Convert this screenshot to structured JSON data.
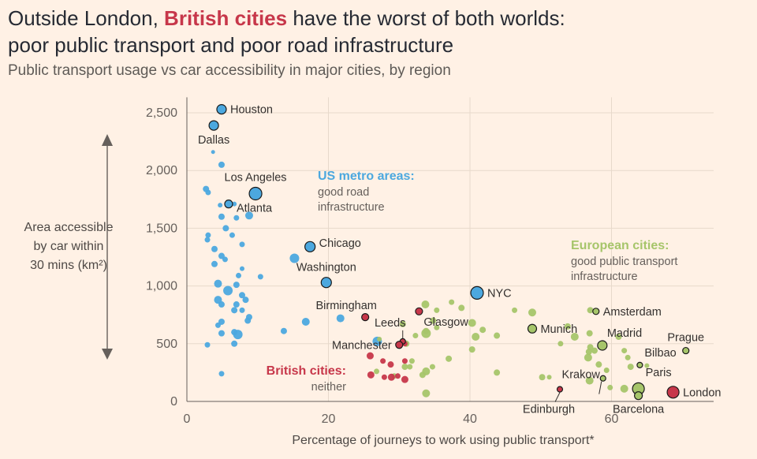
{
  "title": {
    "part1": "Outside London,",
    "highlight": "British cities",
    "part2": "have the worst of both worlds:",
    "line2": "poor public transport and poor road infrastructure"
  },
  "subtitle": "Public transport usage vs car accessibility in major cities, by region",
  "colors": {
    "us": "#4CA8DF",
    "eu": "#A6C56A",
    "uk": "#C7374A",
    "highlight_title": "#C7374A"
  },
  "chart_data": {
    "type": "scatter",
    "xlabel": "Percentage of journeys to work using public transport*",
    "ylabel": [
      "Area accessible",
      "by car within",
      "30 mins (km²)"
    ],
    "xlim": [
      0,
      73
    ],
    "ylim": [
      0,
      2600
    ],
    "xticks": [
      "0",
      "20",
      "40",
      "60"
    ],
    "xtick_values": [
      0,
      20,
      40,
      60
    ],
    "yticks": [
      "0",
      "500",
      "1,000",
      "1,500",
      "2,000",
      "2,500"
    ],
    "ytick_values": [
      0,
      500,
      1000,
      1500,
      2000,
      2500
    ],
    "groups": [
      {
        "name": "US metro areas:",
        "desc": [
          "good road",
          "infrastructure"
        ],
        "color": "#4CA8DF"
      },
      {
        "name": "European cities:",
        "desc": [
          "good public transport",
          "infrastructure"
        ],
        "color": "#A6C56A"
      },
      {
        "name": "British cities:",
        "desc": [
          "neither"
        ],
        "color": "#C7374A"
      }
    ],
    "labeled": [
      {
        "name": "Houston",
        "x": 4.9,
        "y": 2530,
        "r": 6,
        "g": "us",
        "anchor": "right",
        "dy": 0
      },
      {
        "name": "Dallas",
        "x": 3.8,
        "y": 2390,
        "r": 6,
        "g": "us",
        "anchor": "below",
        "dy": 0
      },
      {
        "name": "Los Angeles",
        "x": 9.7,
        "y": 1800,
        "r": 8,
        "g": "us",
        "anchor": "above",
        "dy": 0
      },
      {
        "name": "Atlanta",
        "x": 5.9,
        "y": 1710,
        "r": 5,
        "g": "us",
        "anchor": "right",
        "dy": 5
      },
      {
        "name": "Chicago",
        "x": 17.4,
        "y": 1340,
        "r": 6.5,
        "g": "us",
        "anchor": "right",
        "dy": -5
      },
      {
        "name": "Washington",
        "x": 19.7,
        "y": 1030,
        "r": 6.5,
        "g": "us",
        "anchor": "above",
        "dy": 0
      },
      {
        "name": "NYC",
        "x": 41.0,
        "y": 940,
        "r": 8,
        "g": "us",
        "anchor": "right",
        "dy": 0
      },
      {
        "name": "Birmingham",
        "x": 25.2,
        "y": 730,
        "r": 4.5,
        "g": "uk",
        "anchor": "left-above",
        "dy": 0
      },
      {
        "name": "Glasgow",
        "x": 32.8,
        "y": 780,
        "r": 4.5,
        "g": "uk",
        "anchor": "right-below",
        "dy": 0
      },
      {
        "name": "Leeds",
        "x": 30.5,
        "y": 520,
        "r": 3.5,
        "g": "uk",
        "anchor": "leeds",
        "dy": 0
      },
      {
        "name": "Manchester",
        "x": 30.0,
        "y": 490,
        "r": 4.5,
        "g": "uk",
        "anchor": "left",
        "dy": 0
      },
      {
        "name": "Amsterdam",
        "x": 57.8,
        "y": 780,
        "r": 4,
        "g": "eu",
        "anchor": "right",
        "dy": 0
      },
      {
        "name": "Munich",
        "x": 48.8,
        "y": 630,
        "r": 5.5,
        "g": "eu",
        "anchor": "right",
        "dy": 0
      },
      {
        "name": "Madrid",
        "x": 58.7,
        "y": 485,
        "r": 6,
        "g": "eu",
        "anchor": "above-right",
        "dy": 0
      },
      {
        "name": "Prague",
        "x": 70.5,
        "y": 440,
        "r": 4,
        "g": "eu",
        "anchor": "above",
        "dy": 0
      },
      {
        "name": "Bilbao",
        "x": 64.0,
        "y": 315,
        "r": 3.5,
        "g": "eu",
        "anchor": "above-right",
        "dy": 0
      },
      {
        "name": "Krakow",
        "x": 58.8,
        "y": 200,
        "r": 3.5,
        "g": "eu",
        "anchor": "krakow",
        "dy": 0
      },
      {
        "name": "Paris",
        "x": 63.8,
        "y": 110,
        "r": 7.5,
        "g": "eu",
        "anchor": "right-above",
        "dy": 0
      },
      {
        "name": "Barcelona",
        "x": 63.8,
        "y": 50,
        "r": 5,
        "g": "eu",
        "anchor": "below",
        "dy": 0
      },
      {
        "name": "Edinburgh",
        "x": 52.7,
        "y": 105,
        "r": 3.5,
        "g": "uk",
        "anchor": "edinburgh",
        "dy": 0
      },
      {
        "name": "London",
        "x": 68.7,
        "y": 80,
        "r": 7.5,
        "g": "uk",
        "anchor": "right",
        "dy": 0
      }
    ],
    "unlabeled": {
      "us": [
        [
          3.7,
          2160,
          2.5
        ],
        [
          4.9,
          2050,
          4
        ],
        [
          2.7,
          1840,
          4
        ],
        [
          3.0,
          1810,
          3.5
        ],
        [
          4.7,
          1700,
          3
        ],
        [
          6.7,
          1710,
          3
        ],
        [
          4.9,
          1600,
          4
        ],
        [
          7.0,
          1590,
          3.5
        ],
        [
          8.8,
          1610,
          5
        ],
        [
          5.5,
          1500,
          4
        ],
        [
          6.4,
          1440,
          3.5
        ],
        [
          3.0,
          1440,
          3.5
        ],
        [
          2.9,
          1400,
          3.5
        ],
        [
          7.8,
          1360,
          3.5
        ],
        [
          3.9,
          1320,
          4
        ],
        [
          4.9,
          1260,
          4
        ],
        [
          5.4,
          1230,
          3.5
        ],
        [
          3.9,
          1190,
          4
        ],
        [
          7.8,
          1150,
          3
        ],
        [
          15.2,
          1240,
          6
        ],
        [
          7.3,
          1090,
          3.5
        ],
        [
          10.4,
          1080,
          3.5
        ],
        [
          4.4,
          1020,
          5
        ],
        [
          7.0,
          1010,
          4
        ],
        [
          5.8,
          960,
          6
        ],
        [
          7.8,
          920,
          4
        ],
        [
          7.0,
          840,
          4
        ],
        [
          4.4,
          880,
          5
        ],
        [
          8.3,
          880,
          4
        ],
        [
          4.9,
          840,
          4
        ],
        [
          6.7,
          790,
          4
        ],
        [
          7.8,
          790,
          3.5
        ],
        [
          8.8,
          730,
          4
        ],
        [
          8.6,
          700,
          4
        ],
        [
          4.9,
          690,
          4
        ],
        [
          4.4,
          660,
          3.5
        ],
        [
          16.8,
          690,
          5
        ],
        [
          21.7,
          720,
          5
        ],
        [
          13.7,
          610,
          4
        ],
        [
          6.7,
          600,
          4
        ],
        [
          7.2,
          580,
          6
        ],
        [
          4.9,
          590,
          4
        ],
        [
          2.9,
          490,
          3.5
        ],
        [
          6.7,
          500,
          4
        ],
        [
          26.9,
          520,
          6
        ],
        [
          4.9,
          240,
          3.5
        ]
      ],
      "eu": [
        [
          33.7,
          840,
          5
        ],
        [
          37.4,
          860,
          3.5
        ],
        [
          38.8,
          810,
          4
        ],
        [
          35.3,
          790,
          3.5
        ],
        [
          34.8,
          700,
          4
        ],
        [
          35.3,
          640,
          3.5
        ],
        [
          30.5,
          670,
          4
        ],
        [
          32.3,
          570,
          3.5
        ],
        [
          31.0,
          500,
          4
        ],
        [
          33.8,
          610,
          4
        ],
        [
          33.8,
          590,
          6
        ],
        [
          40.3,
          680,
          5
        ],
        [
          41.8,
          620,
          4
        ],
        [
          40.8,
          560,
          5
        ],
        [
          43.8,
          570,
          4
        ],
        [
          46.3,
          790,
          3.5
        ],
        [
          48.8,
          770,
          5
        ],
        [
          57.0,
          790,
          4
        ],
        [
          53.8,
          650,
          4
        ],
        [
          56.9,
          590,
          4
        ],
        [
          54.8,
          560,
          5
        ],
        [
          52.8,
          500,
          3.5
        ],
        [
          61.0,
          560,
          4
        ],
        [
          61.8,
          440,
          3.5
        ],
        [
          57.0,
          470,
          4
        ],
        [
          56.8,
          430,
          4
        ],
        [
          57.6,
          440,
          4
        ],
        [
          56.7,
          380,
          5
        ],
        [
          62.3,
          380,
          3.5
        ],
        [
          58.2,
          320,
          4
        ],
        [
          59.3,
          270,
          3.5
        ],
        [
          62.7,
          300,
          4
        ],
        [
          65.0,
          310,
          3
        ],
        [
          40.3,
          450,
          4
        ],
        [
          37.0,
          370,
          4
        ],
        [
          34.7,
          300,
          3.5
        ],
        [
          33.8,
          260,
          5
        ],
        [
          31.5,
          300,
          3.5
        ],
        [
          31.8,
          350,
          3.5
        ],
        [
          30.8,
          300,
          4
        ],
        [
          26.8,
          260,
          3.5
        ],
        [
          29.3,
          220,
          3.5
        ],
        [
          33.3,
          230,
          4
        ],
        [
          43.8,
          250,
          4
        ],
        [
          50.2,
          210,
          4
        ],
        [
          51.2,
          210,
          3
        ],
        [
          56.9,
          180,
          5
        ],
        [
          59.3,
          270,
          3
        ],
        [
          61.8,
          110,
          5
        ],
        [
          59.8,
          120,
          3.5
        ],
        [
          33.8,
          70,
          5
        ],
        [
          27.2,
          540,
          3
        ]
      ],
      "uk": [
        [
          25.9,
          395,
          4.5
        ],
        [
          27.7,
          350,
          3.5
        ],
        [
          28.8,
          320,
          4
        ],
        [
          30.8,
          350,
          3.5
        ],
        [
          26.0,
          230,
          4.5
        ],
        [
          27.9,
          210,
          3.5
        ],
        [
          28.9,
          210,
          4.5
        ],
        [
          29.8,
          220,
          3.5
        ],
        [
          30.8,
          190,
          4.5
        ],
        [
          30.8,
          500,
          3.5
        ]
      ]
    }
  }
}
